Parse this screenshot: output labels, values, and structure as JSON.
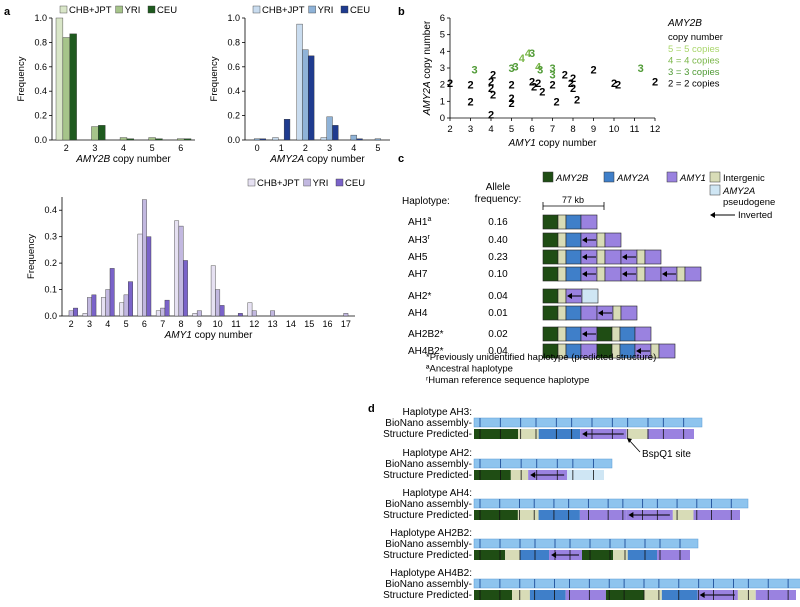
{
  "panel_labels": {
    "a": "a",
    "b": "b",
    "c": "c",
    "d": "d"
  },
  "colors": {
    "chb_2b": "#d9e6c8",
    "yri_2b": "#a6c48a",
    "ceu_2b": "#1f5a1f",
    "chb_2a": "#c9dcef",
    "yri_2a": "#8fb3d8",
    "ceu_2a": "#1f3b8f",
    "chb_1": "#e6e1f2",
    "yri_1": "#c2b8e0",
    "ceu_1": "#7a63c9",
    "seg_2b": "#1f4d14",
    "seg_2a": "#3f7fc9",
    "seg_1": "#9a82e0",
    "seg_int": "#d8dcb7",
    "seg_pseudo": "#cfe6f4",
    "copy5": "#a9d66b",
    "copy4": "#7ab648",
    "copy3": "#4f9a35",
    "copy2": "#000000"
  },
  "chart_data": [
    {
      "type": "bar",
      "id": "amy2b",
      "ylabel": "Frequency",
      "xlabel_gene": "AMY2B",
      "xlabel_rest": " copy number",
      "categories": [
        "2",
        "3",
        "4",
        "5",
        "6"
      ],
      "ylim": [
        0,
        1.0
      ],
      "yticks": [
        "0.0",
        "0.2",
        "0.4",
        "0.6",
        "0.8",
        "1.0"
      ],
      "series": [
        {
          "name": "CHB+JPT",
          "values": [
            1.0,
            0.0,
            0.0,
            0.0,
            0.0
          ]
        },
        {
          "name": "YRI",
          "values": [
            0.84,
            0.11,
            0.02,
            0.02,
            0.01
          ]
        },
        {
          "name": "CEU",
          "values": [
            0.87,
            0.12,
            0.01,
            0.01,
            0.01
          ]
        }
      ]
    },
    {
      "type": "bar",
      "id": "amy2a",
      "ylabel": "Frequency",
      "xlabel_gene": "AMY2A",
      "xlabel_rest": " copy number",
      "categories": [
        "0",
        "1",
        "2",
        "3",
        "4",
        "5"
      ],
      "ylim": [
        0,
        1.0
      ],
      "yticks": [
        "0.0",
        "0.2",
        "0.4",
        "0.6",
        "0.8",
        "1.0"
      ],
      "series": [
        {
          "name": "CHB+JPT",
          "values": [
            0.0,
            0.02,
            0.95,
            0.02,
            0.0,
            0.0
          ]
        },
        {
          "name": "YRI",
          "values": [
            0.01,
            0.0,
            0.74,
            0.19,
            0.04,
            0.01
          ]
        },
        {
          "name": "CEU",
          "values": [
            0.01,
            0.17,
            0.69,
            0.12,
            0.01,
            0.0
          ]
        }
      ]
    },
    {
      "type": "bar",
      "id": "amy1",
      "ylabel": "Frequency",
      "xlabel_gene": "AMY1",
      "xlabel_rest": " copy number",
      "categories": [
        "2",
        "3",
        "4",
        "5",
        "6",
        "7",
        "8",
        "9",
        "10",
        "11",
        "12",
        "13",
        "14",
        "15",
        "16",
        "17"
      ],
      "ylim": [
        0,
        0.45
      ],
      "yticks": [
        "0.0",
        "0.1",
        "0.2",
        "0.3",
        "0.4"
      ],
      "series": [
        {
          "name": "CHB+JPT",
          "values": [
            0.0,
            0.01,
            0.07,
            0.05,
            0.31,
            0.02,
            0.36,
            0.01,
            0.19,
            0.0,
            0.05,
            0.0,
            0.0,
            0.0,
            0.0,
            0.0
          ]
        },
        {
          "name": "YRI",
          "values": [
            0.02,
            0.07,
            0.1,
            0.08,
            0.44,
            0.03,
            0.34,
            0.02,
            0.1,
            0.0,
            0.02,
            0.02,
            0.0,
            0.0,
            0.0,
            0.01
          ]
        },
        {
          "name": "CEU",
          "values": [
            0.03,
            0.08,
            0.18,
            0.13,
            0.3,
            0.06,
            0.21,
            0.0,
            0.04,
            0.01,
            0.0,
            0.0,
            0.0,
            0.0,
            0.0,
            0.0
          ]
        }
      ]
    },
    {
      "type": "scatter",
      "id": "scatter_b",
      "xlabel_gene": "AMY1",
      "xlabel_rest": " copy number",
      "ylabel_gene": "AMY2A",
      "ylabel_rest": " copy number",
      "xlim": [
        2,
        12
      ],
      "ylim": [
        0,
        6
      ],
      "xticks": [
        "2",
        "3",
        "4",
        "5",
        "6",
        "7",
        "8",
        "9",
        "10",
        "11",
        "12"
      ],
      "yticks": [
        "0",
        "1",
        "2",
        "3",
        "4",
        "5",
        "6"
      ],
      "legend_title": "AMY2B",
      "legend_subtitle": "copy number",
      "legend": [
        {
          "label": "5 = 5 copies",
          "key": "5"
        },
        {
          "label": "4 = 4 copies",
          "key": "4"
        },
        {
          "label": "3 = 3 copies",
          "key": "3"
        },
        {
          "label": "2 = 2 copies",
          "key": "2"
        }
      ],
      "points": [
        {
          "x": 2.0,
          "y": 2.1,
          "l": "2"
        },
        {
          "x": 3.0,
          "y": 2.0,
          "l": "2"
        },
        {
          "x": 3.0,
          "y": 1.0,
          "l": "2"
        },
        {
          "x": 3.2,
          "y": 2.9,
          "l": "3"
        },
        {
          "x": 4.0,
          "y": 2.2,
          "l": "2"
        },
        {
          "x": 4.0,
          "y": 1.8,
          "l": "2"
        },
        {
          "x": 4.1,
          "y": 1.4,
          "l": "2"
        },
        {
          "x": 4.0,
          "y": 0.2,
          "l": "2"
        },
        {
          "x": 4.1,
          "y": 2.6,
          "l": "2"
        },
        {
          "x": 5.0,
          "y": 2.0,
          "l": "2"
        },
        {
          "x": 5.0,
          "y": 1.2,
          "l": "2"
        },
        {
          "x": 5.0,
          "y": 0.9,
          "l": "2"
        },
        {
          "x": 5.0,
          "y": 3.0,
          "l": "3"
        },
        {
          "x": 5.2,
          "y": 3.1,
          "l": "3"
        },
        {
          "x": 5.5,
          "y": 3.6,
          "l": "4"
        },
        {
          "x": 5.8,
          "y": 3.9,
          "l": "4"
        },
        {
          "x": 6.0,
          "y": 3.9,
          "l": "3"
        },
        {
          "x": 6.0,
          "y": 2.2,
          "l": "2"
        },
        {
          "x": 6.1,
          "y": 1.9,
          "l": "2"
        },
        {
          "x": 6.3,
          "y": 2.1,
          "l": "2"
        },
        {
          "x": 6.5,
          "y": 1.6,
          "l": "2"
        },
        {
          "x": 6.3,
          "y": 3.1,
          "l": "4"
        },
        {
          "x": 6.4,
          "y": 2.9,
          "l": "3"
        },
        {
          "x": 7.0,
          "y": 3.0,
          "l": "3"
        },
        {
          "x": 7.0,
          "y": 2.6,
          "l": "3"
        },
        {
          "x": 7.0,
          "y": 2.0,
          "l": "2"
        },
        {
          "x": 7.2,
          "y": 1.0,
          "l": "2"
        },
        {
          "x": 7.6,
          "y": 2.6,
          "l": "2"
        },
        {
          "x": 8.0,
          "y": 2.4,
          "l": "2"
        },
        {
          "x": 8.0,
          "y": 1.8,
          "l": "2"
        },
        {
          "x": 8.2,
          "y": 1.1,
          "l": "2"
        },
        {
          "x": 7.9,
          "y": 2.1,
          "l": "2"
        },
        {
          "x": 9.0,
          "y": 2.9,
          "l": "2"
        },
        {
          "x": 10.0,
          "y": 2.1,
          "l": "2"
        },
        {
          "x": 10.2,
          "y": 2.0,
          "l": "2"
        },
        {
          "x": 11.3,
          "y": 3.0,
          "l": "3"
        },
        {
          "x": 12.0,
          "y": 2.2,
          "l": "2"
        }
      ]
    }
  ],
  "panel_c": {
    "legend": [
      {
        "key": "seg_2b",
        "label": "AMY2B",
        "italic": true
      },
      {
        "key": "seg_2a",
        "label": "AMY2A",
        "italic": true
      },
      {
        "key": "seg_1",
        "label": "AMY1",
        "italic": true
      },
      {
        "key": "seg_int",
        "label": "Intergenic",
        "italic": false
      }
    ],
    "pseudo_label_1": "AMY2A",
    "pseudo_label_2": "pseudogene",
    "inverted_label": "Inverted",
    "scale_label": "77 kb",
    "col_haplotype": "Haplotype:",
    "col_freq_1": "Allele",
    "col_freq_2": "frequency:",
    "rows": [
      {
        "name": "AH1",
        "sup": "a",
        "freq": "0.16",
        "segs": "2B I 2A 1"
      },
      {
        "name": "AH3",
        "sup": "r",
        "freq": "0.40",
        "segs": "2B I 2A r1 I 1"
      },
      {
        "name": "AH5",
        "sup": "",
        "freq": "0.23",
        "segs": "2B I 2A r1 I 1 r1 I 1"
      },
      {
        "name": "AH7",
        "sup": "",
        "freq": "0.10",
        "segs": "2B I 2A r1 I 1 r1 I 1 r1 I 1"
      },
      {
        "name": "AH2*",
        "sup": "",
        "freq": "0.04",
        "segs": "2B I r1 P"
      },
      {
        "name": "AH4",
        "sup": "",
        "freq": "0.01",
        "segs": "2B I 2A 1 r1 I 1"
      },
      {
        "name": "AH2B2*",
        "sup": "",
        "freq": "0.02",
        "segs": "2B I 2A r1 2B I 2A 1"
      },
      {
        "name": "AH4B2*",
        "sup": "",
        "freq": "0.04",
        "segs": "2B I 2A 1 2B I 2A r1 I 1"
      }
    ],
    "footnotes": [
      "*Previously unidentified haplotype (predicted structure)",
      "ªAncestral haplotype",
      "ʳHuman reference sequence haplotype"
    ]
  },
  "panel_d": {
    "bionano": "BioNano assembly-",
    "predicted": "Structure Predicted-",
    "site_label": "BspQ1 site",
    "haplotypes": [
      {
        "title": "Haplotype AH3:"
      },
      {
        "title": "Haplotype AH2:"
      },
      {
        "title": "Haplotype AH4:"
      },
      {
        "title": "Haplotype AH2B2:"
      },
      {
        "title": "Haplotype AH4B2:"
      }
    ]
  }
}
